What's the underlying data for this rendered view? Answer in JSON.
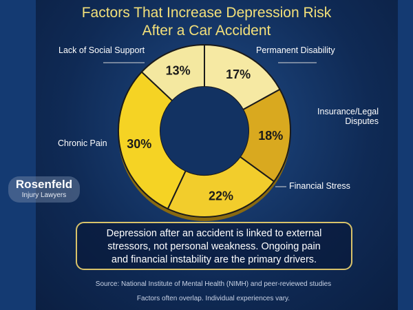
{
  "chart_data": {
    "type": "pie",
    "donut": true,
    "title": "Factors That Increase Depression Risk After a Car Accident",
    "title_lines": [
      "Factors That Increase Depression Risk",
      "After a Car Accident"
    ],
    "slices": [
      {
        "label": "Permanent Disability",
        "value": 17,
        "display": "17%",
        "color": "#f6e9a3"
      },
      {
        "label": "Insurance/Legal Disputes",
        "value": 18,
        "display": "18%",
        "color": "#d9a91f"
      },
      {
        "label": "Financial Stress",
        "value": 22,
        "display": "22%",
        "color": "#f2cd2c"
      },
      {
        "label": "Chronic Pain",
        "value": 30,
        "display": "30%",
        "color": "#f5d324"
      },
      {
        "label": "Lack of Social Support",
        "value": 13,
        "display": "13%",
        "color": "#f4e8a0"
      }
    ],
    "labels": {
      "insurance_l1": "Insurance/Legal",
      "insurance_l2": "Disputes"
    }
  },
  "note": {
    "lines": [
      "Depression after an accident is linked to external",
      "stressors, not personal weakness. Ongoing pain",
      "and financial instability are the primary drivers."
    ]
  },
  "source": "Source: National Institute of Mental Health (NIMH) and peer-reviewed studies",
  "disclaimer": "Factors often overlap. Individual experiences vary.",
  "logo": {
    "name": "Rosenfeld",
    "tagline": "Injury Lawyers"
  }
}
